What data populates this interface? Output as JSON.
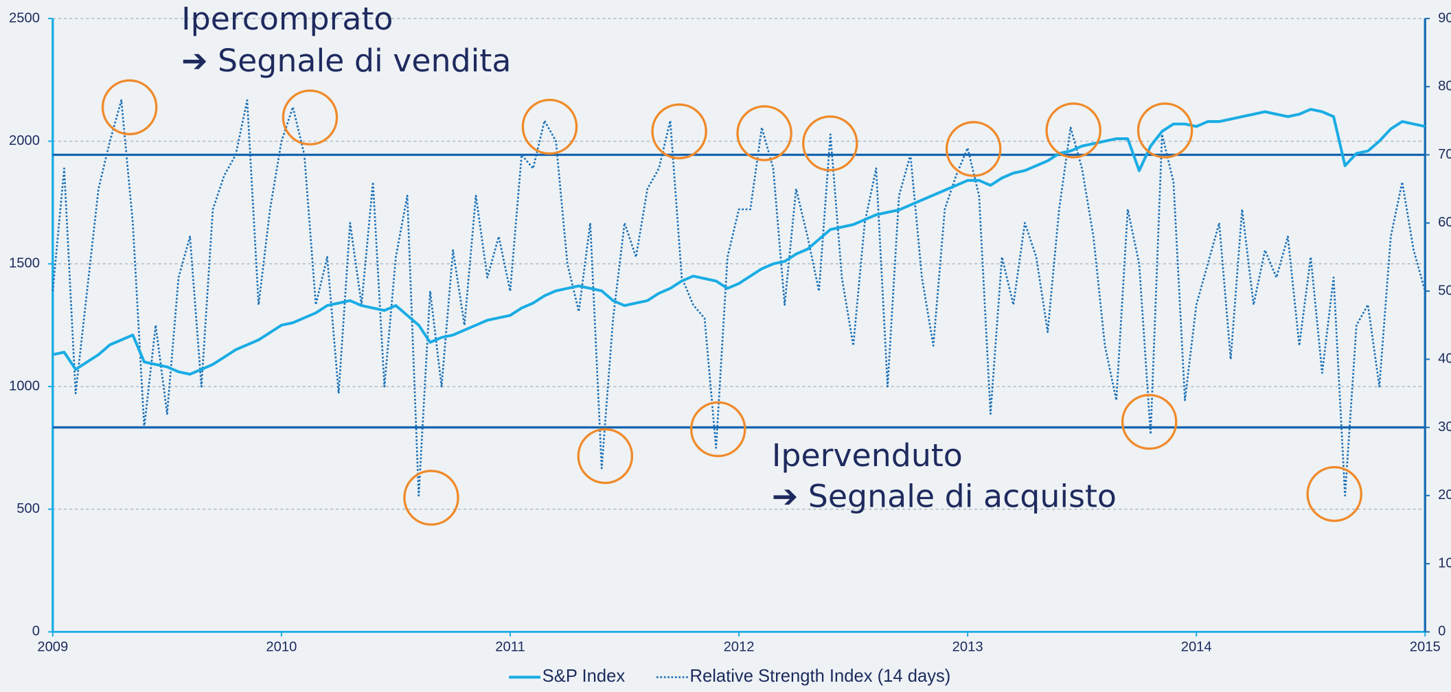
{
  "chart_data": {
    "type": "line",
    "annotations": [
      "Ipercomprato",
      "➔ Segnale di vendita",
      "Ipervenduto",
      "➔ Segnale di acquisto"
    ],
    "x": [
      2009,
      2009.05,
      2009.1,
      2009.15,
      2009.2,
      2009.25,
      2009.3,
      2009.35,
      2009.4,
      2009.45,
      2009.5,
      2009.55,
      2009.6,
      2009.65,
      2009.7,
      2009.75,
      2009.8,
      2009.85,
      2009.9,
      2009.95,
      2010,
      2010.05,
      2010.1,
      2010.15,
      2010.2,
      2010.25,
      2010.3,
      2010.35,
      2010.4,
      2010.45,
      2010.5,
      2010.55,
      2010.6,
      2010.65,
      2010.7,
      2010.75,
      2010.8,
      2010.85,
      2010.9,
      2010.95,
      2011,
      2011.05,
      2011.1,
      2011.15,
      2011.2,
      2011.25,
      2011.3,
      2011.35,
      2011.4,
      2011.45,
      2011.5,
      2011.55,
      2011.6,
      2011.65,
      2011.7,
      2011.75,
      2011.8,
      2011.85,
      2011.9,
      2011.95,
      2012,
      2012.05,
      2012.1,
      2012.15,
      2012.2,
      2012.25,
      2012.3,
      2012.35,
      2012.4,
      2012.45,
      2012.5,
      2012.55,
      2012.6,
      2012.65,
      2012.7,
      2012.75,
      2012.8,
      2012.85,
      2012.9,
      2012.95,
      2013,
      2013.05,
      2013.1,
      2013.15,
      2013.2,
      2013.25,
      2013.3,
      2013.35,
      2013.4,
      2013.45,
      2013.5,
      2013.55,
      2013.6,
      2013.65,
      2013.7,
      2013.75,
      2013.8,
      2013.85,
      2013.9,
      2013.95,
      2014,
      2014.05,
      2014.1,
      2014.15,
      2014.2,
      2014.25,
      2014.3,
      2014.35,
      2014.4,
      2014.45,
      2014.5,
      2014.55,
      2014.6,
      2014.65,
      2014.7,
      2014.75,
      2014.8,
      2014.85,
      2014.9,
      2014.95,
      2015
    ],
    "series": [
      {
        "name": "S&P Index",
        "color": "#1aace4",
        "style": "solid",
        "values": [
          1130,
          1140,
          1070,
          1100,
          1130,
          1170,
          1190,
          1210,
          1100,
          1090,
          1080,
          1060,
          1050,
          1070,
          1090,
          1120,
          1150,
          1170,
          1190,
          1220,
          1250,
          1260,
          1280,
          1300,
          1330,
          1340,
          1350,
          1330,
          1320,
          1310,
          1330,
          1290,
          1250,
          1180,
          1200,
          1210,
          1230,
          1250,
          1270,
          1280,
          1290,
          1320,
          1340,
          1370,
          1390,
          1400,
          1410,
          1400,
          1390,
          1350,
          1330,
          1340,
          1350,
          1380,
          1400,
          1430,
          1450,
          1440,
          1430,
          1400,
          1420,
          1450,
          1480,
          1500,
          1510,
          1540,
          1560,
          1600,
          1640,
          1650,
          1660,
          1680,
          1700,
          1710,
          1720,
          1740,
          1760,
          1780,
          1800,
          1820,
          1840,
          1840,
          1820,
          1850,
          1870,
          1880,
          1900,
          1920,
          1950,
          1960,
          1980,
          1990,
          2000,
          2010,
          2010,
          1880,
          1980,
          2040,
          2070,
          2070,
          2060,
          2080,
          2080,
          2090,
          2100,
          2110,
          2120,
          2110,
          2100,
          2110,
          2130,
          2120,
          2100,
          1900,
          1950,
          1960,
          2000,
          2050,
          2080,
          2070,
          2060
        ]
      },
      {
        "name": "Relative Strength Index (14 days)",
        "color": "#1a6fb5",
        "style": "dotted",
        "axis": "y2",
        "values": [
          50,
          68,
          35,
          50,
          65,
          72,
          78,
          60,
          30,
          45,
          32,
          52,
          58,
          36,
          62,
          67,
          70,
          78,
          48,
          62,
          72,
          77,
          70,
          48,
          55,
          35,
          60,
          48,
          66,
          36,
          55,
          64,
          20,
          50,
          36,
          56,
          45,
          64,
          52,
          58,
          50,
          70,
          68,
          75,
          72,
          54,
          47,
          60,
          24,
          46,
          60,
          55,
          65,
          68,
          75,
          52,
          48,
          46,
          27,
          55,
          62,
          62,
          74,
          68,
          48,
          65,
          58,
          50,
          73,
          52,
          42,
          60,
          68,
          36,
          64,
          70,
          52,
          42,
          62,
          67,
          71,
          64,
          32,
          55,
          48,
          60,
          55,
          44,
          62,
          74,
          68,
          58,
          42,
          34,
          62,
          54,
          29,
          73,
          66,
          34,
          48,
          54,
          60,
          40,
          62,
          48,
          56,
          52,
          58,
          42,
          55,
          38,
          52,
          20,
          45,
          48,
          36,
          58,
          66,
          56,
          50
        ]
      }
    ],
    "hlines": [
      {
        "value": 70,
        "axis": "y2",
        "color": "#1565b0"
      },
      {
        "value": 30,
        "axis": "y2",
        "color": "#1565b0"
      }
    ],
    "xlim": [
      2009,
      2015
    ],
    "xticks": [
      2009,
      2010,
      2011,
      2012,
      2013,
      2014,
      2015
    ],
    "ylim": [
      0,
      2500
    ],
    "yticks": [
      0,
      500,
      1000,
      1500,
      2000,
      2500
    ],
    "y2lim": [
      0,
      90
    ],
    "y2ticks": [
      0,
      10,
      20,
      30,
      40,
      50,
      60,
      70,
      80,
      90
    ],
    "grid": true,
    "legend": "bottom"
  }
}
